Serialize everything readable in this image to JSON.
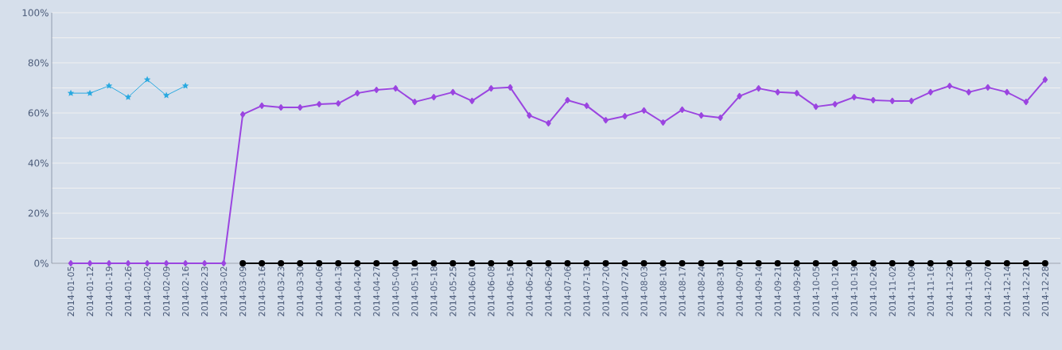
{
  "chart_data": {
    "type": "line",
    "categories": [
      "2014-01-05",
      "2014-01-12",
      "2014-01-19",
      "2014-01-26",
      "2014-02-02",
      "2014-02-09",
      "2014-02-16",
      "2014-02-23",
      "2014-03-02",
      "2014-03-09",
      "2014-03-16",
      "2014-03-23",
      "2014-03-30",
      "2014-04-06",
      "2014-04-13",
      "2014-04-20",
      "2014-04-27",
      "2014-05-04",
      "2014-05-11",
      "2014-05-18",
      "2014-05-25",
      "2014-06-01",
      "2014-06-08",
      "2014-06-15",
      "2014-06-22",
      "2014-06-29",
      "2014-07-06",
      "2014-07-13",
      "2014-07-20",
      "2014-07-27",
      "2014-08-03",
      "2014-08-10",
      "2014-08-17",
      "2014-08-24",
      "2014-08-31",
      "2014-09-07",
      "2014-09-14",
      "2014-09-21",
      "2014-09-28",
      "2014-10-05",
      "2014-10-12",
      "2014-10-19",
      "2014-10-26",
      "2014-11-02",
      "2014-11-09",
      "2014-11-16",
      "2014-11-23",
      "2014-11-30",
      "2014-12-07",
      "2014-12-14",
      "2014-12-21",
      "2014-12-28"
    ],
    "series": [
      {
        "color": "#29a9e0",
        "marker": "star",
        "values": [
          67.9,
          67.9,
          70.8,
          66.3,
          73.3,
          67.0,
          70.8,
          null,
          null,
          null,
          null,
          null,
          null,
          null,
          null,
          null,
          null,
          null,
          null,
          null,
          null,
          null,
          null,
          null,
          null,
          null,
          null,
          null,
          null,
          null,
          null,
          null,
          null,
          null,
          null,
          null,
          null,
          null,
          null,
          null,
          null,
          null,
          null,
          null,
          null,
          null,
          null,
          null,
          null,
          null,
          null,
          null
        ]
      },
      {
        "color": "#9b45e0",
        "marker": "diamond",
        "values": [
          0,
          0,
          0,
          0,
          0,
          0,
          0,
          0,
          0,
          59.4,
          62.9,
          62.2,
          62.2,
          63.5,
          63.8,
          67.9,
          69.2,
          69.8,
          64.4,
          66.3,
          68.3,
          64.8,
          69.8,
          70.2,
          59.0,
          55.9,
          65.1,
          62.9,
          57.1,
          58.7,
          61.0,
          56.2,
          61.3,
          59.0,
          58.1,
          66.7,
          69.8,
          68.3,
          67.9,
          62.5,
          63.5,
          66.3,
          65.1,
          64.8,
          64.8,
          68.3,
          70.8,
          68.3,
          70.2,
          68.3,
          64.4,
          73.3
        ]
      },
      {
        "color": "#000000",
        "marker": "circle",
        "values": [
          null,
          null,
          null,
          null,
          null,
          null,
          null,
          null,
          null,
          0,
          0,
          0,
          0,
          0,
          0,
          0,
          0,
          0,
          0,
          0,
          0,
          0,
          0,
          0,
          0,
          0,
          0,
          0,
          0,
          0,
          0,
          0,
          0,
          0,
          0,
          0,
          0,
          0,
          0,
          0,
          0,
          0,
          0,
          0,
          0,
          0,
          0,
          0,
          0,
          0,
          0,
          0
        ]
      }
    ],
    "ylim": [
      0,
      100
    ],
    "yticks": [
      {
        "value": 0,
        "label": "0%"
      },
      {
        "value": 10,
        "label": null
      },
      {
        "value": 20,
        "label": "20%"
      },
      {
        "value": 30,
        "label": null
      },
      {
        "value": 40,
        "label": "40%"
      },
      {
        "value": 50,
        "label": null
      },
      {
        "value": 60,
        "label": "60%"
      },
      {
        "value": 70,
        "label": null
      },
      {
        "value": 80,
        "label": "80%"
      },
      {
        "value": 90,
        "label": null
      },
      {
        "value": 100,
        "label": "100%"
      }
    ],
    "grid": "y",
    "legend": false
  }
}
